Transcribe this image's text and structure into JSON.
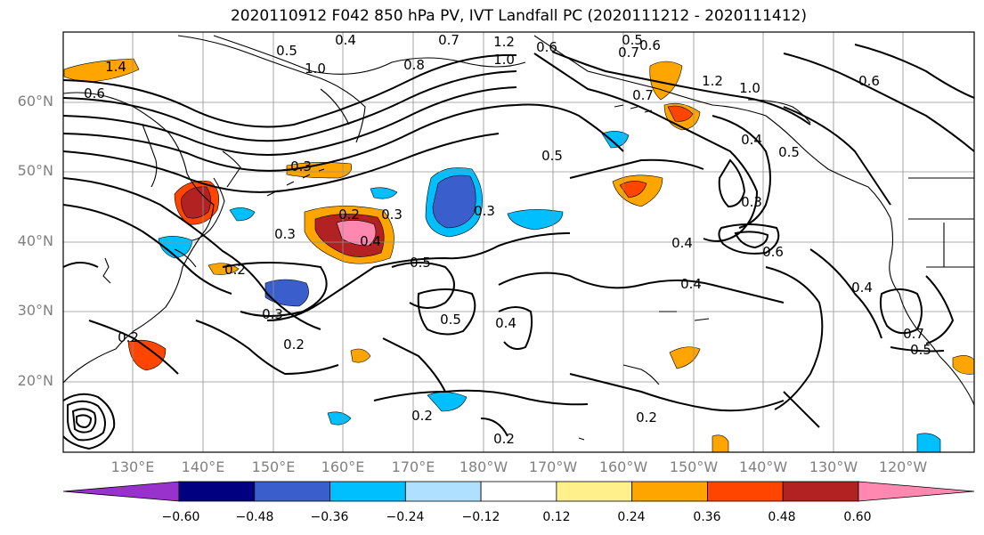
{
  "title": "2020110912 F042 850 hPa PV, IVT Landfall PC (2020111212 - 2020111412)",
  "lat_labels": [
    "60°N",
    "50°N",
    "40°N",
    "30°N",
    "20°N"
  ],
  "lon_labels": [
    "130°E",
    "140°E",
    "150°E",
    "160°E",
    "170°E",
    "180°W",
    "170°W",
    "160°W",
    "150°W",
    "140°W",
    "130°W",
    "120°W"
  ],
  "colorbar": {
    "ticks": [
      "−0.60",
      "−0.48",
      "−0.36",
      "−0.24",
      "−0.12",
      "0.12",
      "0.24",
      "0.36",
      "0.48",
      "0.60"
    ],
    "colors": [
      "#9932cc",
      "#000080",
      "#3a5fcd",
      "#00bfff",
      "#b0e0ff",
      "#ffffff",
      "#fff08c",
      "#ffa500",
      "#ff4500",
      "#b22222",
      "#ff88b0"
    ]
  },
  "contour_labels": [
    "0.5",
    "0.4",
    "1.0",
    "0.8",
    "0.7",
    "0.6",
    "1.2",
    "1.0",
    "0.5",
    "0.6",
    "1.4",
    "0.6",
    "1.2",
    "1.0",
    "0.7",
    "0.7",
    "0.3",
    "0.5",
    "0.4",
    "0.3",
    "0.3",
    "0.6",
    "0.2",
    "0.3",
    "0.2",
    "0.4",
    "0.5",
    "0.4",
    "0.4",
    "0.5",
    "0.4",
    "0.3",
    "0.2",
    "0.2",
    "0.2",
    "0.2",
    "0.4",
    "0.5",
    "0.7",
    "0.5",
    "0.2",
    "0.6",
    "0.3"
  ]
}
